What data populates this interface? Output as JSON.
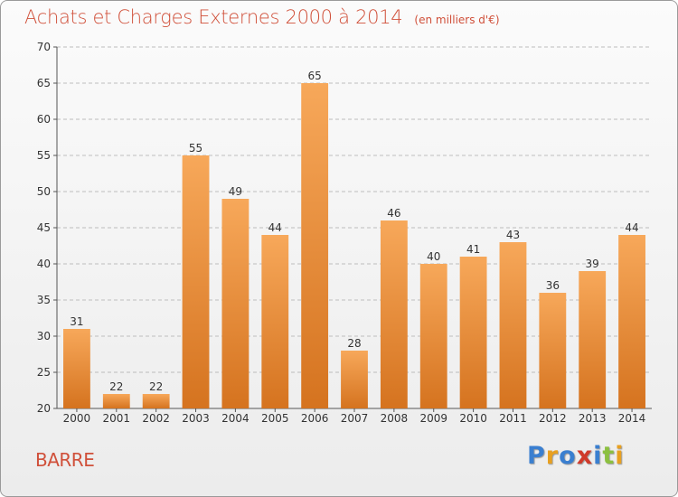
{
  "header": {
    "title": "Achats et Charges Externes 2000 à 2014",
    "unit": "(en milliers d'€)"
  },
  "footer": {
    "commune": "BARRE",
    "logo_letters": [
      {
        "ch": "P",
        "color": "#3a7fd0"
      },
      {
        "ch": "r",
        "color": "#e8a020"
      },
      {
        "ch": "o",
        "color": "#3a7fd0"
      },
      {
        "ch": "x",
        "color": "#d03a2a"
      },
      {
        "ch": "i",
        "color": "#3a7fd0"
      },
      {
        "ch": "t",
        "color": "#8cc040"
      },
      {
        "ch": "i",
        "color": "#e8a020"
      }
    ]
  },
  "colors": {
    "bar_top": "#f7a85a",
    "bar_bottom": "#d5731f",
    "grid": "#bdbdbd",
    "axis_text": "#333333"
  },
  "chart_data": {
    "type": "bar",
    "title": "Achats et Charges Externes 2000 à 2014",
    "subtitle": "(en milliers d'€)",
    "categories": [
      "2000",
      "2001",
      "2002",
      "2003",
      "2004",
      "2005",
      "2006",
      "2007",
      "2008",
      "2009",
      "2010",
      "2011",
      "2012",
      "2013",
      "2014"
    ],
    "values": [
      31,
      22,
      22,
      55,
      49,
      44,
      65,
      28,
      46,
      40,
      41,
      43,
      36,
      39,
      44
    ],
    "ylim": [
      20,
      70
    ],
    "yticks": [
      20,
      25,
      30,
      35,
      40,
      45,
      50,
      55,
      60,
      65,
      70
    ],
    "grid": true,
    "data_labels": true
  }
}
